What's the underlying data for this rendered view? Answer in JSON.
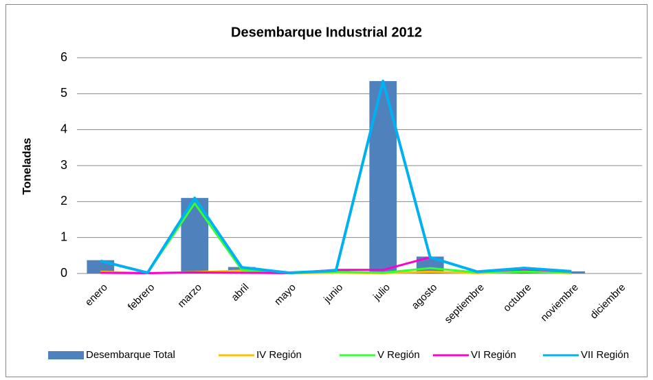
{
  "chart_data": {
    "type": "bar_line",
    "title": "Desembarque Industrial 2012",
    "ylabel": "Toneladas",
    "categories": [
      "enero",
      "febrero",
      "marzo",
      "abril",
      "mayo",
      "junio",
      "julio",
      "agosto",
      "septiembre",
      "octubre",
      "noviembre",
      "diciembre"
    ],
    "series": [
      {
        "name": "Desembarque Total",
        "type": "bar",
        "color": "#4f81bd",
        "values": [
          0.37,
          0.02,
          2.1,
          0.18,
          0.02,
          0.08,
          5.35,
          0.47,
          0.05,
          0.15,
          0.06,
          null
        ]
      },
      {
        "name": "IV Región",
        "type": "line",
        "color": "#ffc000",
        "values": [
          0.05,
          0.01,
          0.04,
          0.08,
          0.01,
          0.02,
          0.01,
          0.05,
          0.01,
          0.05,
          0.01,
          null
        ]
      },
      {
        "name": "V Región",
        "type": "line",
        "color": "#33ff33",
        "values": [
          0.35,
          0.02,
          1.95,
          0.1,
          0.01,
          0.05,
          0.02,
          0.15,
          0.03,
          0.05,
          0.02,
          null
        ]
      },
      {
        "name": "VI Región",
        "type": "line",
        "color": "#ff00cc",
        "values": [
          0.02,
          0.01,
          0.03,
          0.02,
          0.01,
          0.1,
          0.1,
          0.45,
          0.05,
          0.12,
          0.05,
          null
        ]
      },
      {
        "name": "VII Región",
        "type": "line",
        "color": "#00b0f0",
        "values": [
          0.35,
          0.02,
          2.1,
          0.17,
          0.02,
          0.08,
          5.35,
          0.45,
          0.05,
          0.15,
          0.06,
          null
        ]
      }
    ],
    "ylim": [
      0,
      6
    ],
    "yticks": [
      0,
      1,
      2,
      3,
      4,
      5,
      6
    ],
    "grid": true,
    "legend": "bottom"
  }
}
